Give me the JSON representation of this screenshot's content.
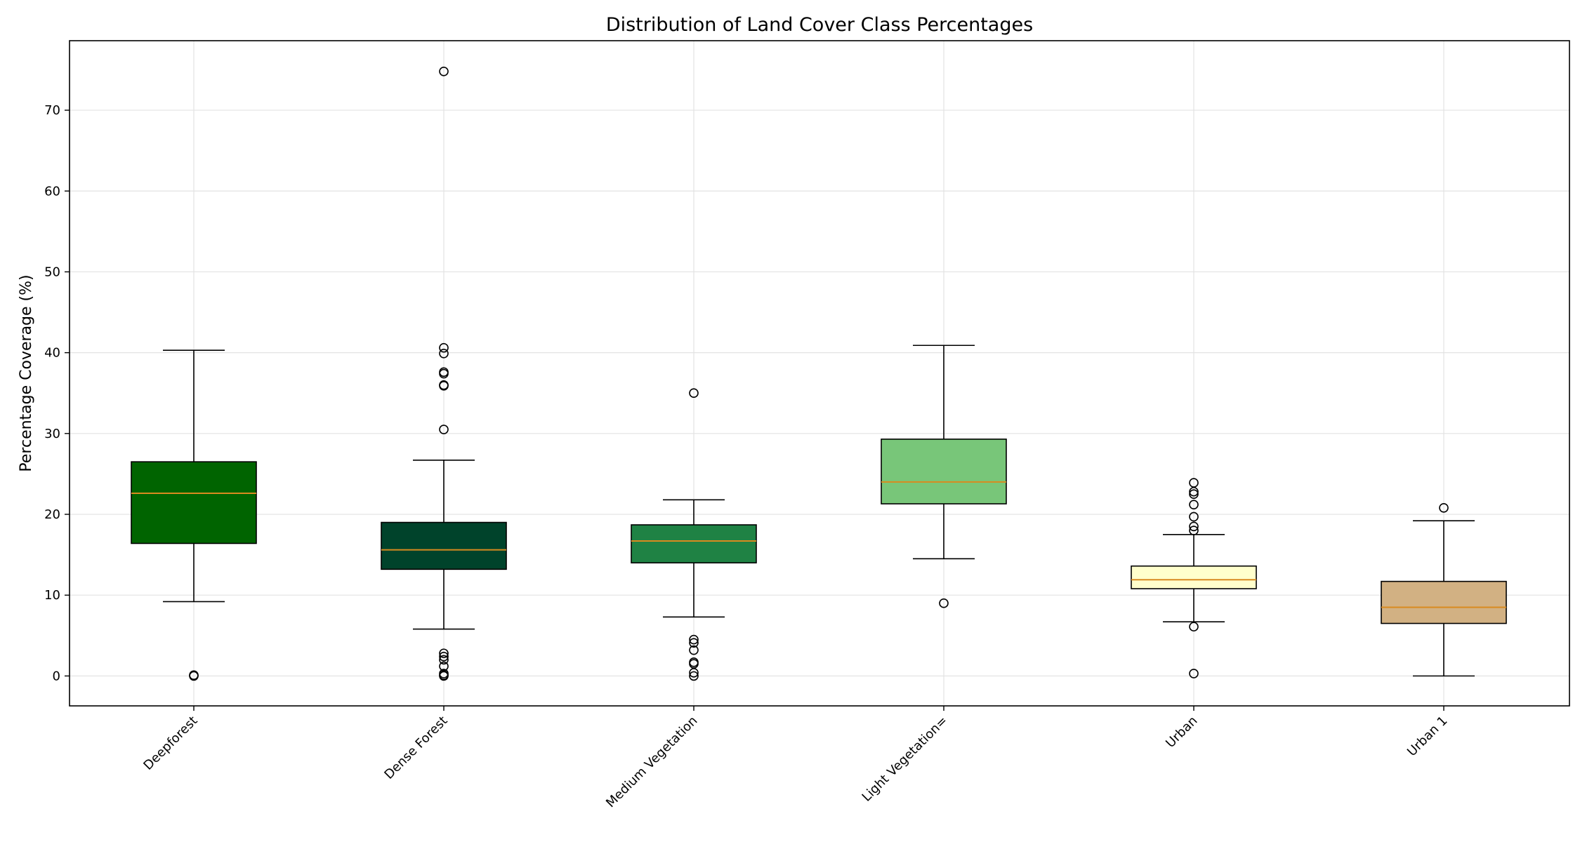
{
  "chart_data": {
    "type": "box",
    "title": "Distribution of Land Cover Class Percentages",
    "xlabel": "",
    "ylabel": "Percentage Coverage (%)",
    "ylim": [
      -3.7,
      78.6
    ],
    "yticks": [
      0,
      10,
      20,
      30,
      40,
      50,
      60,
      70
    ],
    "grid": true,
    "median_color": "#d98a1f",
    "categories": [
      "Deepforest",
      "Dense Forest",
      "Medium Vegetation",
      "Light Vegetation=",
      "Urban",
      "Urban 1"
    ],
    "series": [
      {
        "category": "Deepforest",
        "color": "#006400",
        "whisker_low": 9.2,
        "q1": 16.4,
        "median": 22.6,
        "q3": 26.5,
        "whisker_high": 40.3,
        "outliers": [
          0.0,
          0.1
        ]
      },
      {
        "category": "Dense Forest",
        "color": "#00432b",
        "whisker_low": 5.8,
        "q1": 13.2,
        "median": 15.6,
        "q3": 19.0,
        "whisker_high": 26.7,
        "outliers": [
          74.8,
          40.6,
          39.9,
          37.6,
          37.4,
          36.0,
          35.9,
          30.5,
          2.8,
          2.4,
          2.0,
          1.2,
          0.3,
          0.1,
          0.0
        ]
      },
      {
        "category": "Medium Vegetation",
        "color": "#1f8244",
        "whisker_low": 7.3,
        "q1": 14.0,
        "median": 16.7,
        "q3": 18.7,
        "whisker_high": 21.8,
        "outliers": [
          35.0,
          4.5,
          4.1,
          3.2,
          1.7,
          1.5,
          0.4,
          0.0
        ]
      },
      {
        "category": "Light Vegetation=",
        "color": "#78c679",
        "whisker_low": 14.5,
        "q1": 21.3,
        "median": 24.0,
        "q3": 29.3,
        "whisker_high": 40.9,
        "outliers": [
          9.0
        ]
      },
      {
        "category": "Urban",
        "color": "#ffffcc",
        "whisker_low": 6.7,
        "q1": 10.8,
        "median": 11.9,
        "q3": 13.6,
        "whisker_high": 17.5,
        "outliers": [
          23.9,
          22.8,
          22.5,
          21.2,
          19.7,
          18.5,
          18.0,
          6.1,
          0.3
        ]
      },
      {
        "category": "Urban 1",
        "color": "#d2b183",
        "whisker_low": 0.0,
        "q1": 6.5,
        "median": 8.5,
        "q3": 11.7,
        "whisker_high": 19.2,
        "outliers": [
          20.8
        ]
      }
    ]
  }
}
